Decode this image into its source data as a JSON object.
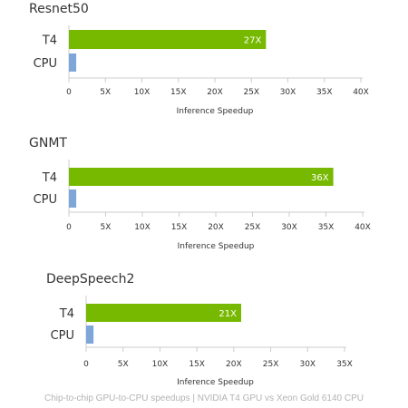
{
  "footer": "Chip-to-chip GPU-to-CPU speedups | NVIDIA T4 GPU vs Xeon Gold 6140 CPU",
  "colors": {
    "t4": "#76b900",
    "cpu": "#7ea6d8",
    "axis": "#cccccc",
    "text": "#333333",
    "label_on_bar": "#ffffff"
  },
  "chart_data": [
    {
      "type": "bar",
      "orientation": "horizontal",
      "title": "Resnet50",
      "categories": [
        "T4",
        "CPU"
      ],
      "values": [
        27,
        1
      ],
      "value_labels": [
        "27X",
        ""
      ],
      "xlabel": "Inference Speedup",
      "xlim": [
        0,
        40
      ],
      "xticks": [
        "0",
        "5X",
        "10X",
        "15X",
        "20X",
        "25X",
        "30X",
        "35X",
        "40X"
      ]
    },
    {
      "type": "bar",
      "orientation": "horizontal",
      "title": "GNMT",
      "categories": [
        "T4",
        "CPU"
      ],
      "values": [
        36,
        1
      ],
      "value_labels": [
        "36X",
        ""
      ],
      "xlabel": "Inference Speedup",
      "xlim": [
        0,
        40
      ],
      "xticks": [
        "0",
        "5X",
        "10X",
        "15X",
        "20X",
        "25X",
        "30X",
        "35X",
        "40X"
      ]
    },
    {
      "type": "bar",
      "orientation": "horizontal",
      "title": "DeepSpeech2",
      "categories": [
        "T4",
        "CPU"
      ],
      "values": [
        21,
        1
      ],
      "value_labels": [
        "21X",
        ""
      ],
      "xlabel": "Inference Speedup",
      "xlim": [
        0,
        35
      ],
      "xticks": [
        "0",
        "5X",
        "10X",
        "15X",
        "20X",
        "25X",
        "30X",
        "35X"
      ]
    }
  ]
}
